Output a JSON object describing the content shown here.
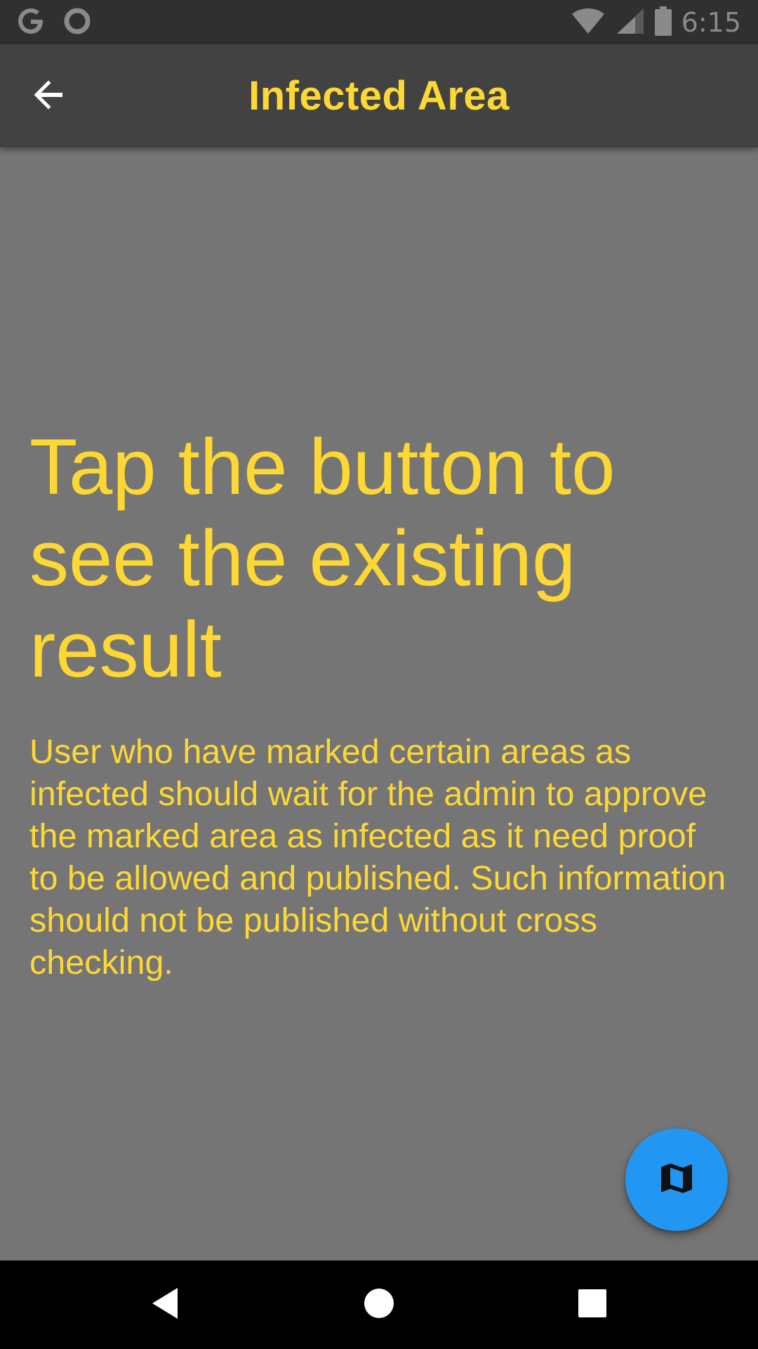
{
  "status_bar": {
    "time": "6:15",
    "left_icons": [
      "google-icon",
      "circle-notification-icon"
    ],
    "right_icons": [
      "wifi-icon",
      "cell-signal-icon",
      "battery-icon"
    ]
  },
  "app_bar": {
    "title": "Infected Area",
    "back_icon": "arrow-back-icon"
  },
  "content": {
    "headline": "Tap the button to see the existing result",
    "body": "User who have marked certain areas as infected should wait for the admin to approve the marked area as infected as it need proof to be allowed and published. Such information should not be published without cross checking."
  },
  "fab": {
    "icon": "map-icon"
  },
  "nav_bar": {
    "buttons": [
      "back-triangle-icon",
      "home-circle-icon",
      "recents-square-icon"
    ]
  },
  "colors": {
    "accent_yellow": "#fdd835",
    "app_bar": "#424242",
    "background": "#757575",
    "fab": "#2196f3"
  }
}
